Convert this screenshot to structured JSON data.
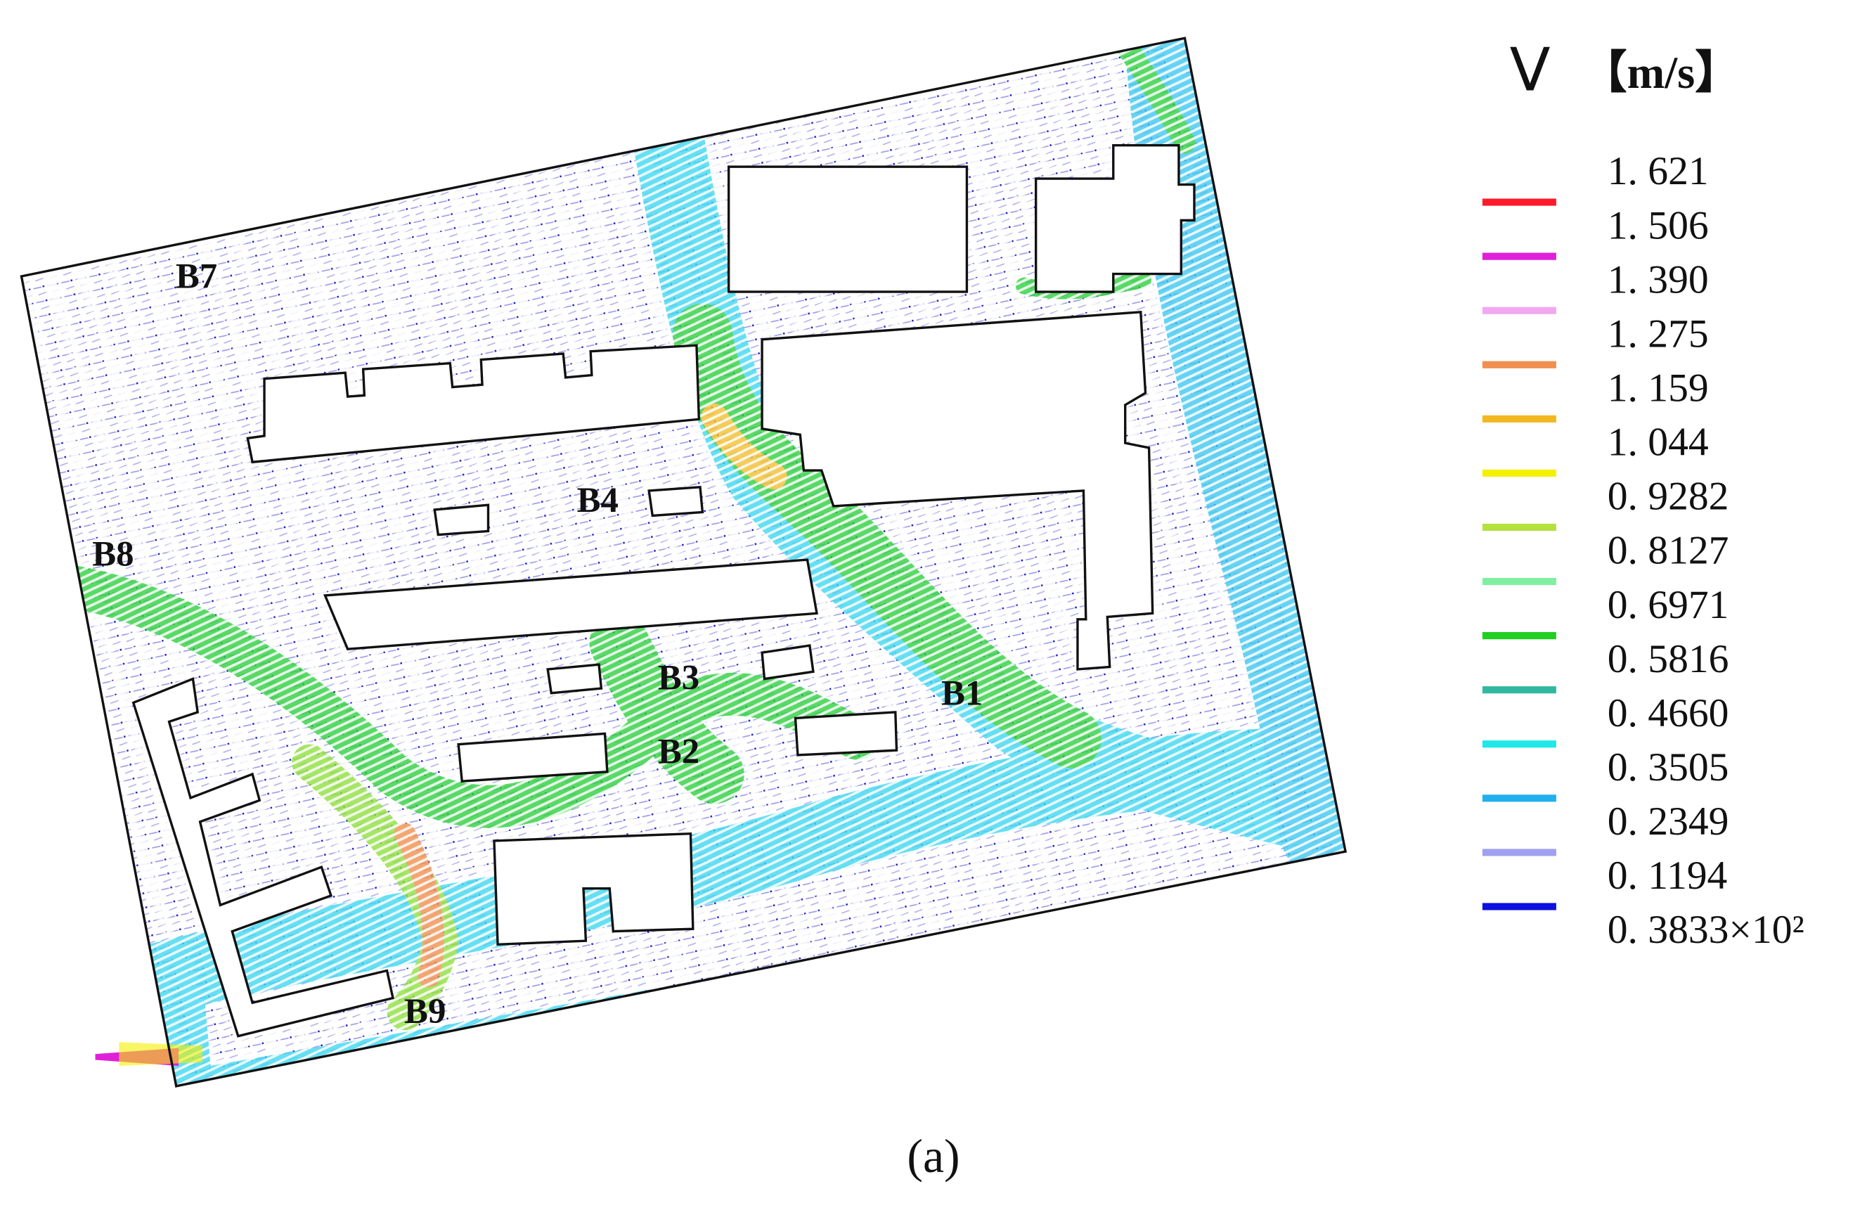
{
  "figure": {
    "building_labels": [
      "B7",
      "B4",
      "B8",
      "B3",
      "B2",
      "B1",
      "B9"
    ],
    "legend": {
      "title": "V",
      "unit": "【m/s】",
      "levels": [
        "1. 621",
        "1. 506",
        "1. 390",
        "1. 275",
        "1. 159",
        "1. 044",
        "0. 9282",
        "0. 8127",
        "0. 6971",
        "0. 5816",
        "0. 4660",
        "0. 3505",
        "0. 2349",
        "0. 1194",
        "0. 3833×10²"
      ],
      "colors": [
        "#ff1a2a",
        "#e020d8",
        "#f0a8f0",
        "#f09050",
        "#f2b820",
        "#f4f000",
        "#b4e040",
        "#80f0a0",
        "#20d020",
        "#30b8a0",
        "#20e8e8",
        "#20b0f0",
        "#a0a0f0",
        "#1010e0"
      ]
    },
    "caption": "(a)"
  }
}
